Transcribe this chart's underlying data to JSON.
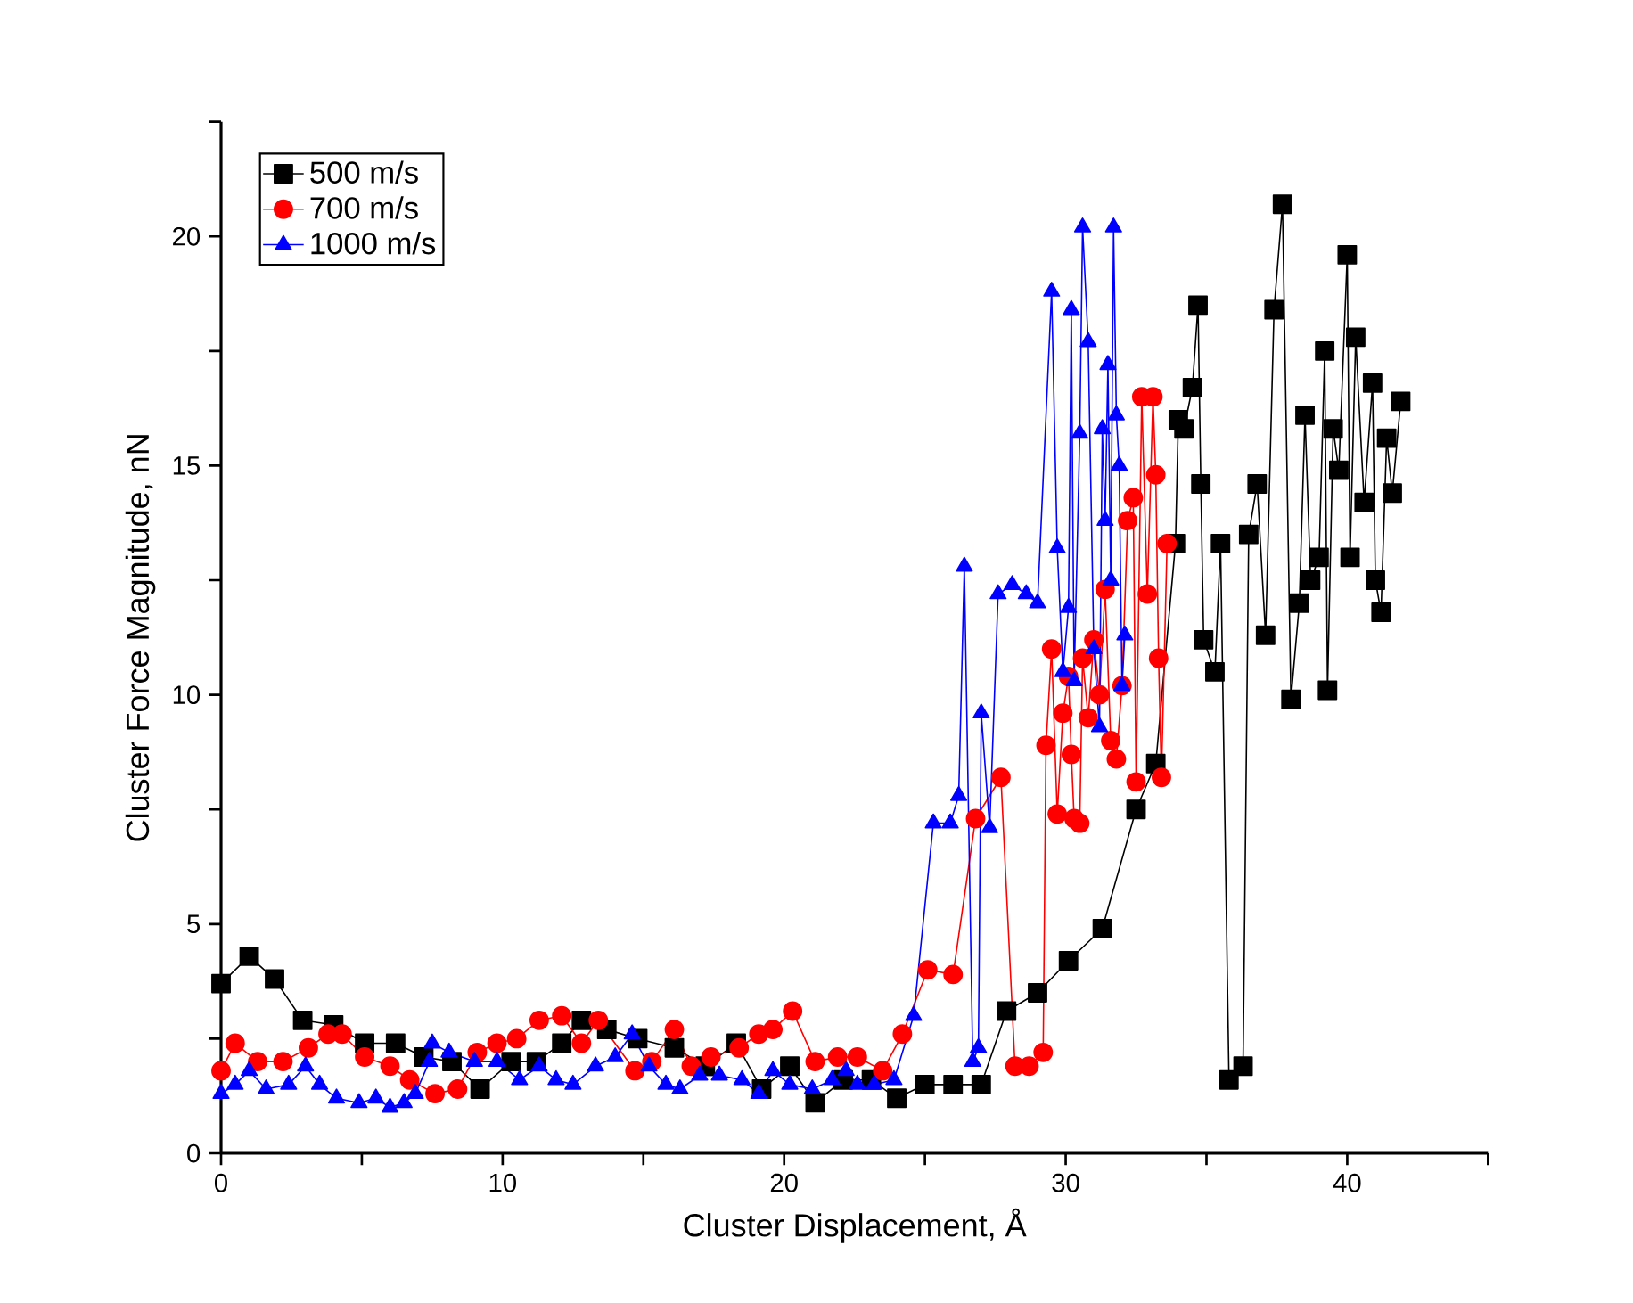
{
  "chart_data": {
    "type": "line",
    "xlabel": "Cluster Displacement, Å",
    "ylabel": "Cluster Force Magnitude, nN",
    "xlim": [
      0,
      45
    ],
    "ylim": [
      0,
      22.5
    ],
    "xticks": [
      0,
      {
        "value": 5,
        "label": null
      },
      10,
      {
        "value": 15,
        "label": null
      },
      20,
      {
        "value": 25,
        "label": null
      },
      30,
      {
        "value": 35,
        "label": null
      },
      40,
      {
        "value": 45,
        "label": null
      }
    ],
    "yticks": [
      0,
      {
        "value": 2.5,
        "label": null
      },
      5,
      {
        "value": 7.5,
        "label": null
      },
      10,
      {
        "value": 12.5,
        "label": null
      },
      15,
      {
        "value": 17.5,
        "label": null
      },
      20,
      {
        "value": 22.5,
        "label": null
      }
    ],
    "legend": "top left",
    "grid": false,
    "line_style": "solid",
    "series": [
      {
        "name": "500 m/s",
        "color": "#000000",
        "marker": "square",
        "x": [
          0,
          1,
          1.9,
          2.9,
          4,
          5.1,
          6.2,
          7.2,
          8.2,
          9.2,
          10.3,
          11.2,
          12.1,
          12.8,
          13.7,
          14.8,
          16.1,
          17.2,
          18.3,
          19.2,
          20.2,
          21.1,
          22.1,
          23.1,
          24,
          25,
          26,
          27,
          27.9,
          29,
          30.1,
          31.3,
          32.5,
          33.2,
          33.9,
          34,
          34.2,
          34.5,
          34.7,
          34.8,
          34.9,
          35.3,
          35.5,
          35.8,
          36.3,
          36.5,
          36.8,
          37.1,
          37.4,
          37.7,
          38,
          38.3,
          38.5,
          38.7,
          39,
          39.2,
          39.3,
          39.5,
          39.7,
          40,
          40.1,
          40.3,
          40.6,
          40.9,
          41,
          41.2,
          41.4,
          41.6,
          41.9
        ],
        "values": [
          3.7,
          4.3,
          3.8,
          2.9,
          2.8,
          2.4,
          2.4,
          2.1,
          2.0,
          1.4,
          2.0,
          2.0,
          2.4,
          2.9,
          2.7,
          2.5,
          2.3,
          1.9,
          2.4,
          1.4,
          1.9,
          1.1,
          1.6,
          1.6,
          1.2,
          1.5,
          1.5,
          1.5,
          3.1,
          3.5,
          4.2,
          4.9,
          7.5,
          8.5,
          13.3,
          16.0,
          15.8,
          16.7,
          18.5,
          14.6,
          11.2,
          10.5,
          13.3,
          1.6,
          1.9,
          13.5,
          14.6,
          11.3,
          18.4,
          20.7,
          9.9,
          12.0,
          16.1,
          12.5,
          13.0,
          17.5,
          10.1,
          15.8,
          14.9,
          19.6,
          13.0,
          17.8,
          14.2,
          16.8,
          12.5,
          11.8,
          15.6,
          14.4,
          16.4
        ]
      },
      {
        "name": "700 m/s",
        "color": "#ff0000",
        "marker": "circle",
        "x": [
          0,
          0.5,
          1.3,
          2.2,
          3.1,
          3.8,
          4.3,
          5.1,
          6,
          6.7,
          7.6,
          8.4,
          9.1,
          9.8,
          10.5,
          11.3,
          12.1,
          12.8,
          13.4,
          14.7,
          15.3,
          16.1,
          16.7,
          17.4,
          18.4,
          19.1,
          19.6,
          20.3,
          21.1,
          21.9,
          22.6,
          23.5,
          24.2,
          25.1,
          26,
          26.8,
          27.7,
          28.2,
          28.7,
          29.2,
          29.3,
          29.5,
          29.7,
          29.9,
          30.1,
          30.2,
          30.3,
          30.5,
          30.6,
          30.8,
          31,
          31.2,
          31.4,
          31.6,
          31.8,
          32,
          32.2,
          32.4,
          32.5,
          32.7,
          32.9,
          33.1,
          33.2,
          33.3,
          33.4,
          33.6
        ],
        "values": [
          1.8,
          2.4,
          2.0,
          2.0,
          2.3,
          2.6,
          2.6,
          2.1,
          1.9,
          1.6,
          1.3,
          1.4,
          2.2,
          2.4,
          2.5,
          2.9,
          3.0,
          2.4,
          2.9,
          1.8,
          2.0,
          2.7,
          1.9,
          2.1,
          2.3,
          2.6,
          2.7,
          3.1,
          2.0,
          2.1,
          2.1,
          1.8,
          2.6,
          4.0,
          3.9,
          7.3,
          8.2,
          1.9,
          1.9,
          2.2,
          8.9,
          11.0,
          7.4,
          9.6,
          10.4,
          8.7,
          7.3,
          7.2,
          10.8,
          9.5,
          11.2,
          10.0,
          12.3,
          9.0,
          8.6,
          10.2,
          13.8,
          14.3,
          8.1,
          16.5,
          12.2,
          16.5,
          14.8,
          10.8,
          8.2,
          13.3
        ]
      },
      {
        "name": "1000 m/s",
        "color": "#0000ff",
        "marker": "triangle",
        "x": [
          0,
          0.5,
          1,
          1.6,
          2.4,
          3,
          3.5,
          4.1,
          4.9,
          5.5,
          6,
          6.5,
          6.9,
          7.4,
          7.5,
          8.1,
          9,
          9.8,
          10.6,
          11.3,
          11.9,
          12.5,
          13.3,
          14,
          14.6,
          15.2,
          15.8,
          16.3,
          17,
          17.7,
          18.5,
          19.1,
          19.6,
          20.2,
          21,
          21.7,
          22.2,
          22.6,
          23.2,
          23.9,
          24.6,
          25.3,
          25.9,
          26.2,
          26.4,
          26.7,
          26.9,
          27,
          27.3,
          27.6,
          28.1,
          28.6,
          29,
          29.5,
          29.7,
          29.9,
          30.1,
          30.2,
          30.3,
          30.5,
          30.6,
          30.8,
          31,
          31.2,
          31.3,
          31.4,
          31.5,
          31.6,
          31.7,
          31.8,
          31.9,
          32,
          32.1
        ],
        "values": [
          1.3,
          1.5,
          1.8,
          1.4,
          1.5,
          1.9,
          1.5,
          1.2,
          1.1,
          1.2,
          1.0,
          1.1,
          1.3,
          2.0,
          2.4,
          2.2,
          2.0,
          2.0,
          1.6,
          1.9,
          1.6,
          1.5,
          1.9,
          2.1,
          2.6,
          1.9,
          1.5,
          1.4,
          1.7,
          1.7,
          1.6,
          1.3,
          1.8,
          1.5,
          1.4,
          1.6,
          1.8,
          1.5,
          1.5,
          1.6,
          3.0,
          7.2,
          7.2,
          7.8,
          12.8,
          2.0,
          2.3,
          9.6,
          7.1,
          12.2,
          12.4,
          12.2,
          12.0,
          18.8,
          13.2,
          10.5,
          11.9,
          18.4,
          10.3,
          15.7,
          20.2,
          17.7,
          11.0,
          9.3,
          15.8,
          13.8,
          17.2,
          12.5,
          20.2,
          16.1,
          15.0,
          10.2,
          11.3
        ]
      }
    ]
  }
}
